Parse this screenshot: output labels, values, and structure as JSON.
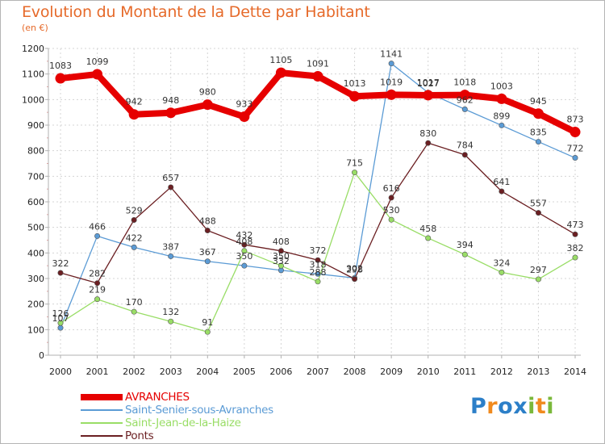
{
  "chart_data": {
    "type": "line",
    "title": "Evolution du Montant de la Dette par Habitant",
    "subtitle": "(en €)",
    "x": [
      "2000",
      "2001",
      "2002",
      "2003",
      "2004",
      "2005",
      "2006",
      "2007",
      "2008",
      "2009",
      "2010",
      "2011",
      "2012",
      "2013",
      "2014"
    ],
    "ylim": [
      0,
      1200
    ],
    "yticks": [
      0,
      100,
      200,
      300,
      400,
      500,
      600,
      700,
      800,
      900,
      1000,
      1100,
      1200
    ],
    "grid": true,
    "legend_position": "bottom-left",
    "series": [
      {
        "name": "AVRANCHES",
        "color": "#e60000",
        "values": [
          1083,
          1099,
          942,
          948,
          980,
          933,
          1105,
          1091,
          1013,
          1019,
          1017,
          1018,
          1003,
          945,
          873
        ]
      },
      {
        "name": "Saint-Senier-sous-Avranches",
        "color": "#5b9bd5",
        "values": [
          107,
          466,
          422,
          387,
          367,
          350,
          332,
          318,
          302,
          1141,
          1027,
          962,
          899,
          835,
          772
        ]
      },
      {
        "name": "Saint-Jean-de-la-Haize",
        "color": "#99dd66",
        "values": [
          126,
          219,
          170,
          132,
          91,
          408,
          350,
          288,
          715,
          530,
          458,
          394,
          324,
          297,
          382
        ]
      },
      {
        "name": "Ponts",
        "color": "#6b1f22",
        "values": [
          322,
          282,
          529,
          657,
          488,
          432,
          408,
          372,
          298,
          616,
          830,
          784,
          641,
          557,
          473
        ]
      }
    ]
  },
  "logo": {
    "letters": [
      "P",
      "r",
      "o",
      "x",
      "i",
      "t",
      "i"
    ]
  }
}
